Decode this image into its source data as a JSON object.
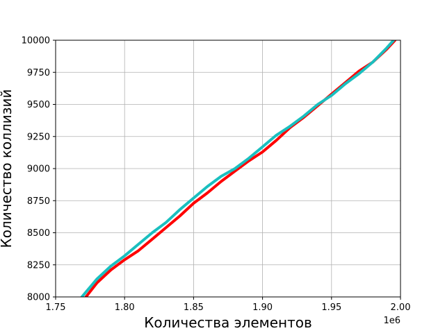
{
  "chart_data": {
    "type": "line",
    "xlabel": "Количества элементов",
    "ylabel": "Количество коллизий",
    "x_offset_label": "1e6",
    "xlim": [
      1.75,
      2.0
    ],
    "ylim": [
      8000,
      10000
    ],
    "x_ticks": [
      "1.75",
      "1.80",
      "1.85",
      "1.90",
      "1.95",
      "2.00"
    ],
    "y_ticks": [
      "8000",
      "8250",
      "8500",
      "8750",
      "9000",
      "9250",
      "9500",
      "9750",
      "10000"
    ],
    "grid": true,
    "series": [
      {
        "color": "#ff0000",
        "points": [
          [
            1.772,
            8000
          ],
          [
            1.78,
            8110
          ],
          [
            1.79,
            8210
          ],
          [
            1.8,
            8290
          ],
          [
            1.81,
            8360
          ],
          [
            1.82,
            8450
          ],
          [
            1.83,
            8540
          ],
          [
            1.84,
            8630
          ],
          [
            1.85,
            8730
          ],
          [
            1.86,
            8810
          ],
          [
            1.87,
            8900
          ],
          [
            1.88,
            8980
          ],
          [
            1.89,
            9060
          ],
          [
            1.9,
            9130
          ],
          [
            1.91,
            9220
          ],
          [
            1.92,
            9320
          ],
          [
            1.93,
            9400
          ],
          [
            1.94,
            9490
          ],
          [
            1.95,
            9580
          ],
          [
            1.96,
            9670
          ],
          [
            1.97,
            9760
          ],
          [
            1.98,
            9830
          ],
          [
            1.99,
            9930
          ],
          [
            1.996,
            10000
          ]
        ]
      },
      {
        "color": "#1abfbf",
        "points": [
          [
            1.769,
            8000
          ],
          [
            1.78,
            8140
          ],
          [
            1.79,
            8240
          ],
          [
            1.8,
            8320
          ],
          [
            1.81,
            8410
          ],
          [
            1.82,
            8500
          ],
          [
            1.83,
            8580
          ],
          [
            1.84,
            8680
          ],
          [
            1.85,
            8770
          ],
          [
            1.86,
            8860
          ],
          [
            1.87,
            8940
          ],
          [
            1.88,
            9000
          ],
          [
            1.89,
            9080
          ],
          [
            1.9,
            9170
          ],
          [
            1.91,
            9260
          ],
          [
            1.92,
            9330
          ],
          [
            1.93,
            9410
          ],
          [
            1.94,
            9500
          ],
          [
            1.95,
            9570
          ],
          [
            1.96,
            9660
          ],
          [
            1.97,
            9740
          ],
          [
            1.98,
            9830
          ],
          [
            1.99,
            9940
          ],
          [
            1.995,
            10000
          ]
        ]
      }
    ]
  }
}
